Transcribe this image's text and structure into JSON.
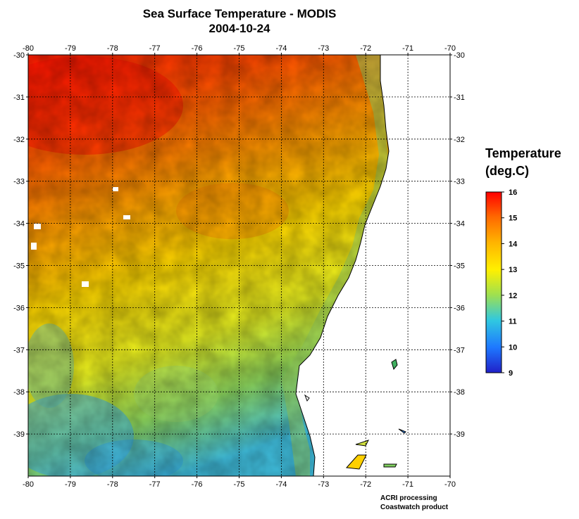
{
  "title": "Sea Surface Temperature - MODIS",
  "date": "2004-10-24",
  "legend": {
    "title_line1": "Temperature",
    "title_line2": "(deg.C)",
    "ticks": [
      "16",
      "15",
      "14",
      "13",
      "12",
      "11",
      "10",
      "9"
    ],
    "min": 9,
    "max": 16,
    "colors": [
      "#ff0000",
      "#ff6a00",
      "#ffb400",
      "#fff000",
      "#9ee050",
      "#30c8e0",
      "#1e78ff",
      "#2020c8"
    ]
  },
  "axes": {
    "lon_labels": [
      "-80",
      "-79",
      "-78",
      "-77",
      "-76",
      "-75",
      "-74",
      "-73",
      "-72",
      "-71",
      "-70"
    ],
    "lat_labels": [
      "-30",
      "-31",
      "-32",
      "-33",
      "-34",
      "-35",
      "-36",
      "-37",
      "-38",
      "-39"
    ],
    "lat_labels_bottom_omitted": true
  },
  "credits": {
    "line1": "ACRI processing",
    "line2": "Coastwatch product"
  }
}
